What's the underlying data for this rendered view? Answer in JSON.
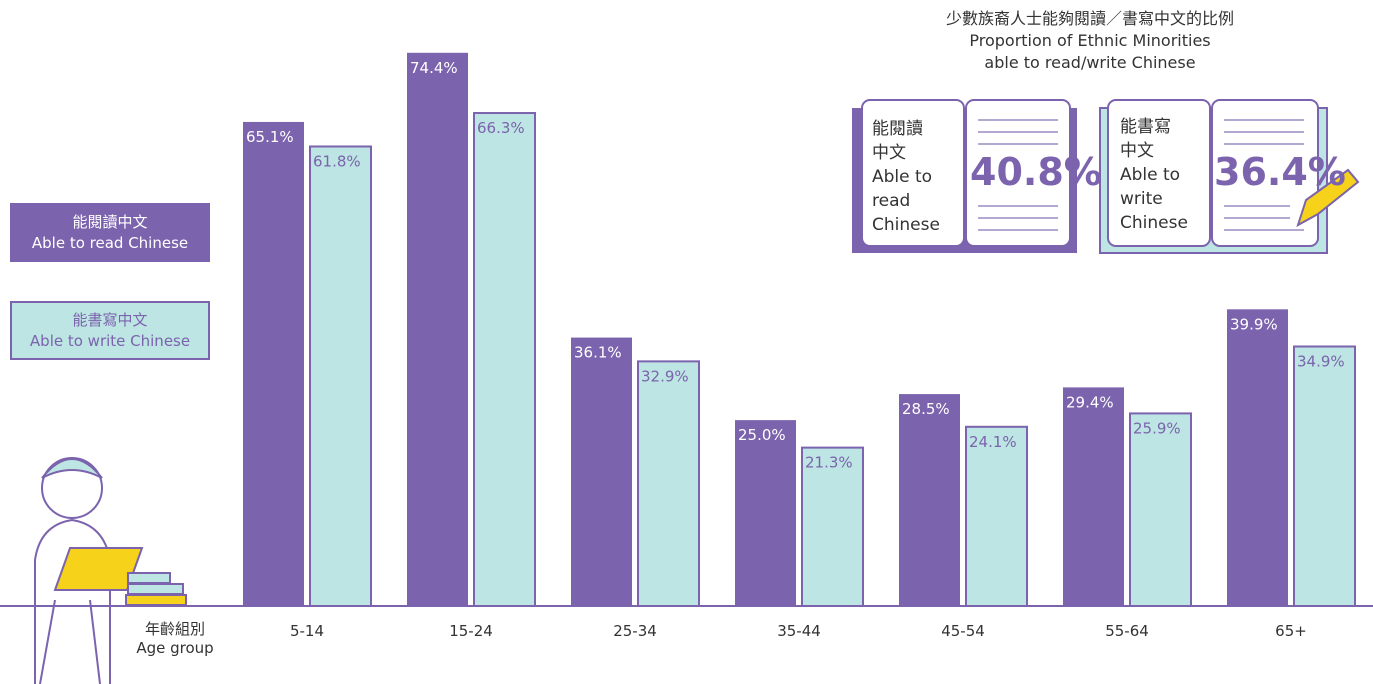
{
  "chart_data": {
    "type": "bar",
    "categories": [
      "5-14",
      "15-24",
      "25-34",
      "35-44",
      "45-54",
      "55-64",
      "65+"
    ],
    "series": [
      {
        "name": "能閱讀中文\nAble to read Chinese",
        "color": "#7b63ad",
        "values": [
          65.1,
          74.4,
          36.1,
          25.0,
          28.5,
          29.4,
          39.9
        ],
        "value_labels": [
          "65.1%",
          "74.4%",
          "36.1%",
          "25.0%",
          "28.5%",
          "29.4%",
          "39.9%"
        ]
      },
      {
        "name": "能書寫中文\nAble to write Chinese",
        "color": "#bde5e3",
        "values": [
          61.8,
          66.3,
          32.9,
          21.3,
          24.1,
          25.9,
          34.9
        ],
        "value_labels": [
          "61.8%",
          "66.3%",
          "32.9%",
          "21.3%",
          "24.1%",
          "25.9%",
          "34.9%"
        ]
      }
    ],
    "x_label": "年齡組別\nAge group",
    "ylim": [
      0,
      81.5
    ]
  },
  "info_panel": {
    "title": "少數族裔人士能夠閱讀／書寫中文的比例\nProportion of Ethnic Minorities\nable to read/write Chinese",
    "cards": [
      {
        "label": "能閱讀\n中文\nAble to\nread\nChinese",
        "value": "40.8%"
      },
      {
        "label": "能書寫\n中文\nAble to\nwrite\nChinese",
        "value": "36.4%"
      }
    ]
  }
}
